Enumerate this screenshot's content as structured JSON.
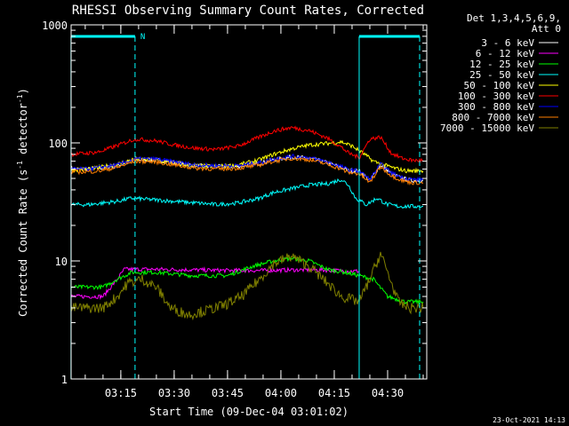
{
  "chart_data": {
    "type": "line",
    "title": "RHESSI Observing Summary Count Rates, Corrected",
    "xlabel": "Start Time (09-Dec-04 03:01:02)",
    "ylabel": "Corrected Count Rate (s⁻¹ detector⁻¹)",
    "ylabel_base": "Corrected Count Rate (s",
    "ylabel_sup1": "-1",
    "ylabel_mid": " detector",
    "ylabel_sup2": "-1",
    "ylabel_end": ")",
    "y_scale": "log",
    "ylim": [
      1,
      1000
    ],
    "xlim": [
      "03:01:02",
      "04:41:00"
    ],
    "x_ticks": [
      "03:15",
      "03:30",
      "03:45",
      "04:00",
      "04:15",
      "04:30"
    ],
    "y_ticks": [
      "1",
      "10",
      "100",
      "1000"
    ],
    "legend_position": "right",
    "legend_header": [
      "Det 1,3,4,5,6,9,",
      "Att 0"
    ],
    "timestamp": "23-Oct-2021 14:13",
    "annotations": [
      {
        "text": "N",
        "time": "03:19",
        "color": "#00ffff"
      }
    ],
    "night_markers": [
      {
        "start": "03:01",
        "end": "03:19"
      },
      {
        "start": "04:22",
        "end": "04:39"
      }
    ],
    "series": [
      {
        "name": "3 - 6 keV",
        "color": "#ffffff",
        "x": [
          "03:01",
          "03:06",
          "03:09",
          "03:14",
          "03:19",
          "03:25",
          "03:30",
          "03:36",
          "03:42",
          "03:48",
          "03:54",
          "03:58",
          "04:03",
          "04:08",
          "04:13",
          "04:17",
          "04:19",
          "04:22",
          "04:25",
          "04:28",
          "04:31",
          "04:34",
          "04:37",
          "04:40"
        ],
        "values": [
          60,
          60,
          61,
          64,
          72,
          72,
          68,
          64,
          63,
          63,
          67,
          72,
          76,
          74,
          68,
          62,
          58,
          58,
          48,
          65,
          55,
          50,
          48,
          48
        ]
      },
      {
        "name": "6 - 12 keV",
        "color": "#ff00ff",
        "x": [
          "03:01",
          "03:06",
          "03:10",
          "03:14",
          "03:16",
          "03:25",
          "03:35",
          "03:45",
          "03:55",
          "04:05",
          "04:10",
          "04:15",
          "04:20",
          "04:22"
        ],
        "values": [
          5,
          5,
          5,
          7,
          8.5,
          8.5,
          8.4,
          8.3,
          8.3,
          8.4,
          8.4,
          8.3,
          8.2,
          8.2
        ]
      },
      {
        "name": "12 - 25 keV",
        "color": "#00ff00",
        "x": [
          "03:01",
          "03:06",
          "03:10",
          "03:14",
          "03:18",
          "03:25",
          "03:35",
          "03:45",
          "03:52",
          "03:58",
          "04:03",
          "04:08",
          "04:13",
          "04:18",
          "04:22",
          "04:26",
          "04:30",
          "04:35",
          "04:40"
        ],
        "values": [
          6,
          6,
          6,
          7,
          8,
          8,
          7.5,
          7.5,
          9,
          10,
          10.5,
          10,
          8.5,
          8,
          7.5,
          7,
          5,
          4.5,
          4.5
        ]
      },
      {
        "name": "25 - 50 keV",
        "color": "#00ffff",
        "x": [
          "03:01",
          "03:06",
          "03:10",
          "03:14",
          "03:18",
          "03:24",
          "03:30",
          "03:36",
          "03:42",
          "03:48",
          "03:54",
          "03:58",
          "04:03",
          "04:08",
          "04:13",
          "04:17",
          "04:19",
          "04:21",
          "04:24",
          "04:27",
          "04:30",
          "04:33",
          "04:36",
          "04:40"
        ],
        "values": [
          30,
          30,
          31,
          32,
          34,
          33,
          32,
          31,
          30,
          31,
          34,
          38,
          41,
          44,
          45,
          49,
          44,
          34,
          30,
          34,
          30,
          29,
          29,
          29
        ]
      },
      {
        "name": "50 - 100 keV",
        "color": "#ffff00",
        "x": [
          "03:01",
          "03:06",
          "03:09",
          "03:14",
          "03:19",
          "03:25",
          "03:30",
          "03:36",
          "03:42",
          "03:48",
          "03:54",
          "03:58",
          "04:03",
          "04:08",
          "04:13",
          "04:17",
          "04:20",
          "04:23",
          "04:26",
          "04:29",
          "04:32",
          "04:35",
          "04:40"
        ],
        "values": [
          59,
          60,
          62,
          66,
          73,
          71,
          67,
          64,
          63,
          65,
          72,
          80,
          89,
          96,
          99,
          102,
          94,
          82,
          70,
          65,
          61,
          58,
          58
        ]
      },
      {
        "name": "100 - 300 keV",
        "color": "#ff0000",
        "x": [
          "03:01",
          "03:06",
          "03:09",
          "03:14",
          "03:19",
          "03:25",
          "03:30",
          "03:36",
          "03:42",
          "03:48",
          "03:54",
          "03:58",
          "04:03",
          "04:08",
          "04:13",
          "04:17",
          "04:19",
          "04:22",
          "04:25",
          "04:28",
          "04:31",
          "04:34",
          "04:37",
          "04:40"
        ],
        "values": [
          80,
          82,
          84,
          95,
          108,
          104,
          96,
          90,
          88,
          94,
          112,
          126,
          135,
          127,
          110,
          92,
          82,
          75,
          108,
          112,
          82,
          74,
          71,
          71
        ]
      },
      {
        "name": "300 - 800 keV",
        "color": "#0000ff",
        "x": [
          "03:01",
          "03:06",
          "03:09",
          "03:14",
          "03:19",
          "03:25",
          "03:30",
          "03:36",
          "03:42",
          "03:48",
          "03:54",
          "03:58",
          "04:03",
          "04:08",
          "04:13",
          "04:17",
          "04:19",
          "04:22",
          "04:25",
          "04:28",
          "04:31",
          "04:34",
          "04:37",
          "04:40"
        ],
        "values": [
          60,
          60,
          62,
          65,
          73,
          73,
          69,
          65,
          64,
          64,
          68,
          73,
          77,
          75,
          69,
          63,
          59,
          58,
          49,
          66,
          56,
          51,
          49,
          49
        ]
      },
      {
        "name": "800 - 7000 keV",
        "color": "#ff8000",
        "x": [
          "03:01",
          "03:06",
          "03:09",
          "03:14",
          "03:19",
          "03:25",
          "03:30",
          "03:36",
          "03:42",
          "03:48",
          "03:54",
          "03:58",
          "04:03",
          "04:08",
          "04:13",
          "04:17",
          "04:19",
          "04:22",
          "04:25",
          "04:28",
          "04:31",
          "04:34",
          "04:37",
          "04:40"
        ],
        "values": [
          57,
          57,
          58,
          62,
          70,
          69,
          65,
          61,
          60,
          61,
          65,
          70,
          74,
          72,
          66,
          60,
          56,
          55,
          46,
          63,
          53,
          48,
          46,
          46
        ]
      },
      {
        "name": "7000 - 15000 keV",
        "color": "#808000",
        "x": [
          "03:01",
          "03:06",
          "03:10",
          "03:14",
          "03:17",
          "03:21",
          "03:25",
          "03:29",
          "03:34",
          "03:39",
          "03:44",
          "03:49",
          "03:54",
          "03:58",
          "04:03",
          "04:08",
          "04:13",
          "04:17",
          "04:22",
          "04:25",
          "04:28",
          "04:30",
          "04:33",
          "04:36",
          "04:40"
        ],
        "values": [
          4,
          4,
          4,
          5,
          6.5,
          7,
          6,
          4,
          3.5,
          3.8,
          4.2,
          5,
          7,
          9.5,
          11,
          9,
          6.5,
          5,
          4.5,
          7,
          11.5,
          8,
          4.5,
          4,
          4
        ]
      }
    ]
  }
}
